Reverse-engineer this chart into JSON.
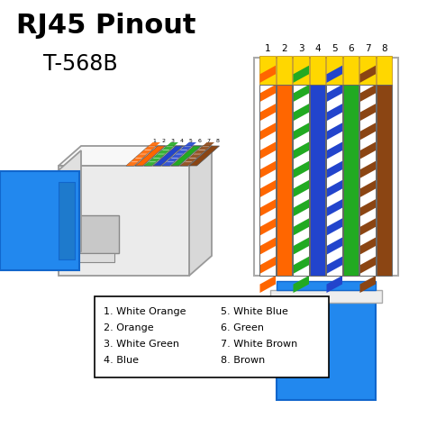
{
  "title_line1": "RJ45 Pinout",
  "title_line2": "T-568B",
  "wire_colors": [
    {
      "name": "White Orange",
      "base": "#FFFFFF",
      "stripe": "#FF6600"
    },
    {
      "name": "Orange",
      "base": "#FF6600",
      "stripe": null
    },
    {
      "name": "White Green",
      "base": "#FFFFFF",
      "stripe": "#22AA22"
    },
    {
      "name": "Blue",
      "base": "#2244CC",
      "stripe": null
    },
    {
      "name": "White Blue",
      "base": "#FFFFFF",
      "stripe": "#2244CC"
    },
    {
      "name": "Green",
      "base": "#22AA22",
      "stripe": null
    },
    {
      "name": "White Brown",
      "base": "#FFFFFF",
      "stripe": "#8B4513"
    },
    {
      "name": "Brown",
      "base": "#8B4513",
      "stripe": null
    }
  ],
  "cable_color": "#2288EE",
  "cable_edge": "#1166CC",
  "gold_color": "#FFD700",
  "gold_edge": "#B8860B",
  "conn_fill": "#F0F0F0",
  "conn_edge": "#999999",
  "conn_dark": "#D0D0D0",
  "conn_white": "#FAFAFA",
  "left_items": [
    "1. White Orange",
    "2. Orange",
    "3. White Green",
    "4. Blue"
  ],
  "right_items": [
    "5. White Blue",
    "6. Green",
    "7. White Brown",
    "8. Brown"
  ]
}
